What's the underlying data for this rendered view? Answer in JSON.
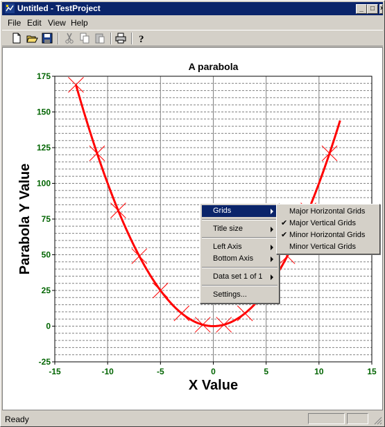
{
  "window": {
    "title": "Untitled - TestProject"
  },
  "titlebar_buttons": {
    "minimize": "_",
    "maximize": "□",
    "close": "×"
  },
  "menubar": [
    "File",
    "Edit",
    "View",
    "Help"
  ],
  "toolbar": [
    "new-icon",
    "open-icon",
    "save-icon",
    "cut-icon",
    "copy-icon",
    "paste-icon",
    "print-icon",
    "help-icon"
  ],
  "status": {
    "text": "Ready"
  },
  "context_menu": {
    "grids": "Grids",
    "title_size": "Title size",
    "left_axis": "Left Axis",
    "bottom_axis": "Bottom Axis",
    "data_set": "Data set 1 of 1",
    "settings": "Settings..."
  },
  "grids_submenu": [
    {
      "label": "Major Horizontal Grids",
      "checked": false
    },
    {
      "label": "Major Vertical Grids",
      "checked": true
    },
    {
      "label": "Minor Horizontal Grids",
      "checked": true
    },
    {
      "label": "Minor Vertical Grids",
      "checked": false
    }
  ],
  "colors": {
    "curve": "#ff0000",
    "ticks": "#006400",
    "title_bar": "#0a246a"
  },
  "chart_data": {
    "type": "line",
    "title": "A parabola",
    "xlabel": "X Value",
    "ylabel": "Parabola Y Value",
    "xlim": [
      -15,
      15
    ],
    "ylim": [
      -25,
      175
    ],
    "x_ticks": [
      -15,
      -10,
      -5,
      0,
      5,
      10,
      15
    ],
    "y_ticks": [
      -25,
      0,
      25,
      50,
      75,
      100,
      125,
      150,
      175
    ],
    "x_minor_step": 2.5,
    "y_minor_step": 5,
    "grid": {
      "major_vertical": true,
      "minor_horizontal": true,
      "major_horizontal": false,
      "minor_vertical": false
    },
    "curve": {
      "formula": "y = x^2",
      "x_from": -13,
      "x_to": 12
    },
    "markers": {
      "shape": "x",
      "x": [
        -13,
        -11,
        -9,
        -7,
        -5,
        -3,
        -1,
        1,
        3,
        5,
        7,
        9,
        11
      ],
      "y": [
        169,
        121,
        81,
        49,
        25,
        9,
        1,
        1,
        9,
        25,
        49,
        81,
        121
      ]
    }
  }
}
